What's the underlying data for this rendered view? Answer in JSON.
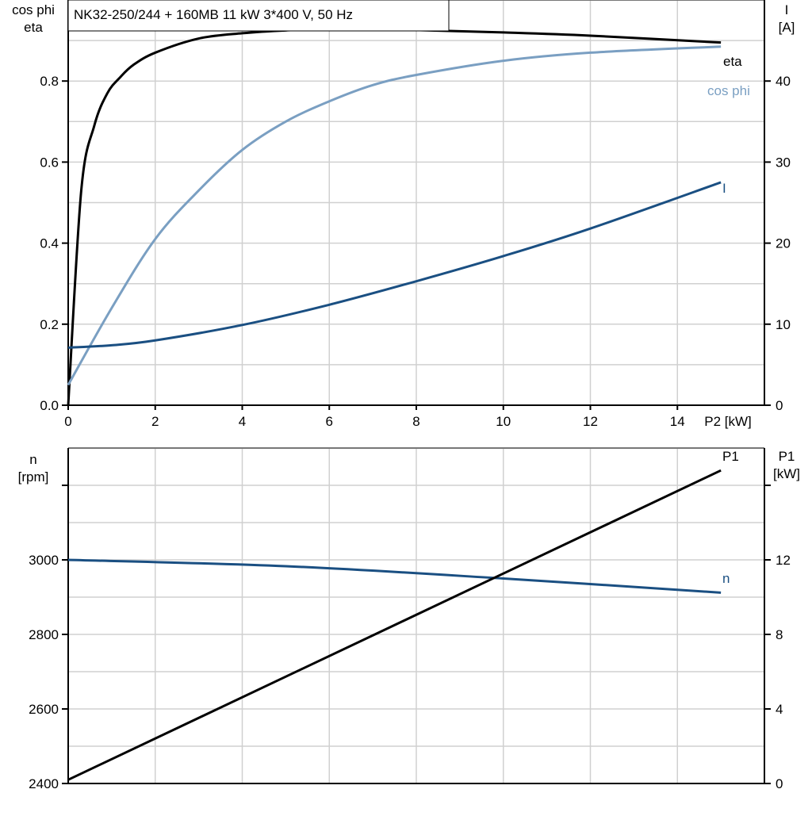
{
  "chart_data": [
    {
      "type": "line",
      "title": "NK32-250/244 + 160MB   11 kW   3*400 V, 50 Hz",
      "xlabel": "P2 [kW]",
      "ylabel_left": [
        "cos phi",
        "eta"
      ],
      "ylabel_right": [
        "I",
        "[A]"
      ],
      "xlim": [
        0,
        16
      ],
      "ylim_left": [
        0,
        1.0
      ],
      "ylim_right": [
        0,
        50
      ],
      "x_ticks": [
        0,
        2,
        4,
        6,
        8,
        10,
        12,
        14
      ],
      "y_ticks_left": [
        "0.0",
        "0.2",
        "0.4",
        "0.6",
        "0.8"
      ],
      "y_ticks_right": [
        "0",
        "10",
        "20",
        "30",
        "40"
      ],
      "grid": true,
      "series": [
        {
          "name": "eta",
          "axis": "left",
          "color": "#000000",
          "x": [
            0,
            0.3,
            0.6,
            0.9,
            1.2,
            1.5,
            2,
            3,
            4,
            5,
            6,
            8,
            10,
            12,
            15
          ],
          "y": [
            0,
            0.53,
            0.69,
            0.77,
            0.81,
            0.84,
            0.87,
            0.905,
            0.918,
            0.925,
            0.928,
            0.926,
            0.92,
            0.912,
            0.895
          ]
        },
        {
          "name": "cos phi",
          "axis": "left",
          "color": "#7a9fc2",
          "x": [
            0,
            1,
            2,
            3,
            4,
            5,
            6,
            7,
            8,
            10,
            12,
            15
          ],
          "y": [
            0.05,
            0.24,
            0.41,
            0.53,
            0.63,
            0.7,
            0.75,
            0.79,
            0.815,
            0.85,
            0.87,
            0.885
          ]
        },
        {
          "name": "I",
          "axis": "right",
          "color": "#1a4f82",
          "x": [
            0,
            1,
            2,
            4,
            6,
            8,
            10,
            12,
            15
          ],
          "y": [
            7.1,
            7.4,
            8.0,
            9.9,
            12.4,
            15.3,
            18.4,
            21.8,
            27.5
          ]
        }
      ]
    },
    {
      "type": "line",
      "ylabel_left": [
        "n",
        "[rpm]"
      ],
      "ylabel_right": [
        "P1",
        "[kW]"
      ],
      "xlim": [
        0,
        16
      ],
      "ylim_left": [
        2400,
        3300
      ],
      "ylim_right": [
        0,
        18
      ],
      "y_ticks_left": [
        "2400",
        "2600",
        "2800",
        "3000"
      ],
      "y_ticks_right": [
        "0",
        "4",
        "8",
        "12"
      ],
      "grid": true,
      "series": [
        {
          "name": "n",
          "axis": "left",
          "color": "#1a4f82",
          "x": [
            0,
            5,
            10,
            15
          ],
          "y": [
            3000,
            2983,
            2950,
            2912
          ]
        },
        {
          "name": "P1",
          "axis": "right",
          "color": "#000000",
          "x": [
            0,
            15
          ],
          "y": [
            0.2,
            16.8
          ]
        }
      ]
    }
  ]
}
